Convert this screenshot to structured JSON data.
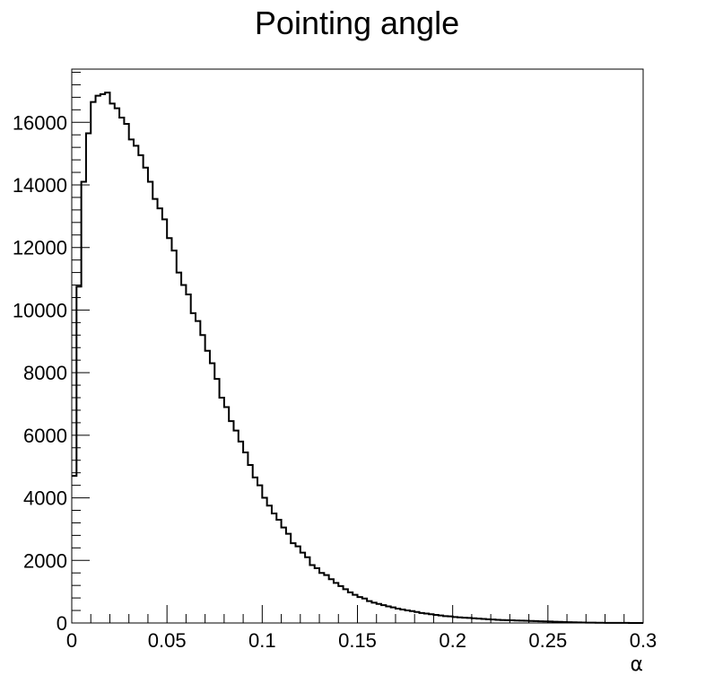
{
  "chart_data": {
    "type": "histogram",
    "title": "Pointing angle",
    "xlabel": "α",
    "ylabel": "",
    "xlim": [
      0,
      0.3
    ],
    "ylim": [
      0,
      17700
    ],
    "x_ticks": [
      0,
      0.05,
      0.1,
      0.15,
      0.2,
      0.25,
      0.3
    ],
    "x_tick_labels": [
      "0",
      "0.05",
      "0.1",
      "0.15",
      "0.2",
      "0.25",
      "0.3"
    ],
    "y_ticks": [
      0,
      2000,
      4000,
      6000,
      8000,
      10000,
      12000,
      14000,
      16000
    ],
    "y_tick_labels": [
      "0",
      "2000",
      "4000",
      "6000",
      "8000",
      "10000",
      "12000",
      "14000",
      "16000"
    ],
    "grid": false,
    "legend": "none",
    "bin_width": 0.0025,
    "series": [
      {
        "values": [
          4700,
          10750,
          14100,
          15650,
          16650,
          16850,
          16900,
          16950,
          16600,
          16450,
          16150,
          15950,
          15450,
          15250,
          14950,
          14550,
          14100,
          13550,
          13250,
          12900,
          12300,
          11900,
          11200,
          10800,
          10500,
          9900,
          9650,
          9200,
          8700,
          8300,
          7800,
          7200,
          6900,
          6450,
          6150,
          5800,
          5450,
          5050,
          4650,
          4400,
          4000,
          3750,
          3500,
          3300,
          3050,
          2850,
          2550,
          2450,
          2250,
          2100,
          1850,
          1750,
          1600,
          1530,
          1400,
          1280,
          1180,
          1080,
          980,
          900,
          830,
          780,
          700,
          650,
          610,
          570,
          530,
          500,
          460,
          430,
          400,
          380,
          350,
          320,
          300,
          280,
          260,
          240,
          220,
          210,
          190,
          180,
          170,
          160,
          150,
          140,
          130,
          120,
          110,
          100,
          95,
          90,
          85,
          80,
          75,
          70,
          65,
          60,
          55,
          50,
          45,
          40,
          35,
          30,
          25,
          20,
          18,
          15,
          12,
          10,
          8,
          6,
          5,
          4,
          3,
          2,
          2,
          1,
          1,
          1
        ]
      }
    ]
  }
}
